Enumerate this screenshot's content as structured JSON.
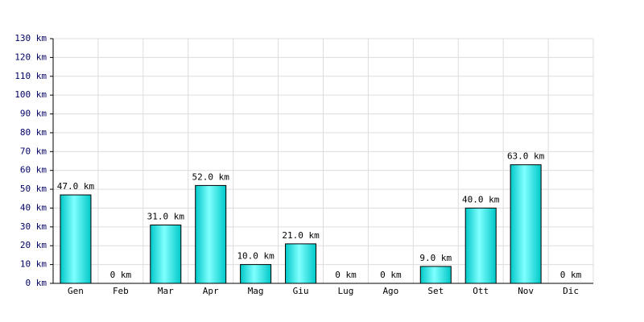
{
  "chart_data": {
    "type": "bar",
    "categories": [
      "Gen",
      "Feb",
      "Mar",
      "Apr",
      "Mag",
      "Giu",
      "Lug",
      "Ago",
      "Set",
      "Ott",
      "Nov",
      "Dic"
    ],
    "values": [
      47,
      0,
      31,
      52,
      10,
      21,
      0,
      0,
      9,
      40,
      63,
      0
    ],
    "value_labels": [
      "47.0 km",
      "0 km",
      "31.0 km",
      "52.0 km",
      "10.0 km",
      "21.0 km",
      "0 km",
      "0 km",
      "9.0 km",
      "40.0 km",
      "63.0 km",
      "0 km"
    ],
    "color": "#00c8c8",
    "ylim": [
      0,
      130
    ],
    "yticks": [
      {
        "value": 0,
        "label": "0 km"
      },
      {
        "value": 10,
        "label": "10 km"
      },
      {
        "value": 20,
        "label": "20 km"
      },
      {
        "value": 30,
        "label": "30 km"
      },
      {
        "value": 40,
        "label": "40 km"
      },
      {
        "value": 50,
        "label": "50 km"
      },
      {
        "value": 60,
        "label": "60 km"
      },
      {
        "value": 70,
        "label": "70 km"
      },
      {
        "value": 80,
        "label": "80 km"
      },
      {
        "value": 90,
        "label": "90 km"
      },
      {
        "value": 100,
        "label": "100 km"
      },
      {
        "value": 110,
        "label": "110 km"
      },
      {
        "value": 120,
        "label": "120 km"
      },
      {
        "value": 130,
        "label": "130 km"
      }
    ],
    "grid": true
  }
}
